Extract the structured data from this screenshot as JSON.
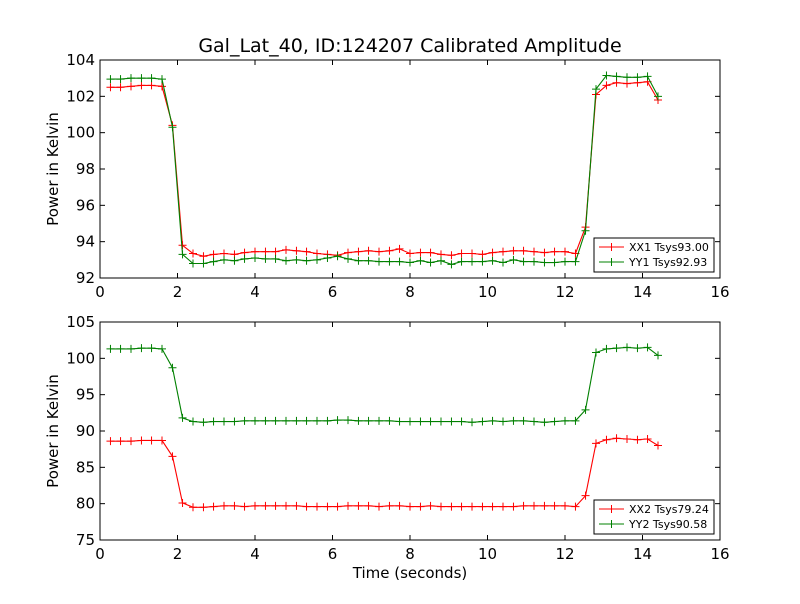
{
  "figure": {
    "title": "Gal_Lat_40, ID:124207 Calibrated Amplitude",
    "xlabel": "Time (seconds)"
  },
  "chart_data": [
    {
      "type": "line",
      "title": "Gal_Lat_40, ID:124207 Calibrated Amplitude",
      "xlabel": "",
      "ylabel": "Power in Kelvin",
      "xlim": [
        0,
        16
      ],
      "ylim": [
        92,
        104
      ],
      "xticks": [
        0,
        2,
        4,
        6,
        8,
        10,
        12,
        14,
        16
      ],
      "yticks": [
        92,
        94,
        96,
        98,
        100,
        102,
        104
      ],
      "legend_position": "lower-right",
      "x": [
        0.27,
        0.53,
        0.8,
        1.07,
        1.33,
        1.6,
        1.87,
        2.13,
        2.4,
        2.67,
        2.93,
        3.2,
        3.47,
        3.73,
        4.0,
        4.27,
        4.53,
        4.8,
        5.07,
        5.33,
        5.6,
        5.87,
        6.13,
        6.4,
        6.67,
        6.93,
        7.2,
        7.47,
        7.73,
        8.0,
        8.27,
        8.53,
        8.8,
        9.07,
        9.33,
        9.6,
        9.87,
        10.13,
        10.4,
        10.67,
        10.93,
        11.2,
        11.47,
        11.73,
        12.0,
        12.27,
        12.53,
        12.8,
        13.07,
        13.33,
        13.6,
        13.87,
        14.13,
        14.4
      ],
      "series": [
        {
          "name": "XX1 Tsys93.00",
          "color": "#ff0000",
          "values": [
            102.5,
            102.5,
            102.55,
            102.6,
            102.6,
            102.55,
            100.4,
            93.8,
            93.35,
            93.2,
            93.3,
            93.35,
            93.3,
            93.4,
            93.45,
            93.45,
            93.45,
            93.55,
            93.5,
            93.45,
            93.35,
            93.3,
            93.25,
            93.4,
            93.45,
            93.5,
            93.45,
            93.5,
            93.6,
            93.35,
            93.4,
            93.4,
            93.3,
            93.25,
            93.35,
            93.35,
            93.3,
            93.4,
            93.45,
            93.5,
            93.5,
            93.45,
            93.4,
            93.45,
            93.45,
            93.35,
            94.8,
            102.1,
            102.6,
            102.75,
            102.7,
            102.75,
            102.8,
            101.8
          ]
        },
        {
          "name": "YY1 Tsys92.93",
          "color": "#008000",
          "values": [
            102.95,
            102.95,
            103.0,
            103.0,
            103.0,
            102.95,
            100.3,
            93.3,
            92.8,
            92.8,
            92.9,
            93.0,
            92.95,
            93.05,
            93.1,
            93.05,
            93.05,
            92.95,
            93.0,
            92.95,
            93.0,
            93.1,
            93.2,
            93.05,
            92.95,
            92.95,
            92.9,
            92.9,
            92.9,
            92.85,
            92.95,
            92.85,
            92.95,
            92.75,
            92.9,
            92.9,
            92.9,
            92.95,
            92.85,
            93.0,
            92.9,
            92.9,
            92.85,
            92.85,
            92.9,
            92.9,
            94.6,
            102.4,
            103.15,
            103.1,
            103.05,
            103.05,
            103.1,
            102.0
          ]
        }
      ]
    },
    {
      "type": "line",
      "title": "",
      "xlabel": "Time (seconds)",
      "ylabel": "Power in Kelvin",
      "xlim": [
        0,
        16
      ],
      "ylim": [
        75,
        105
      ],
      "xticks": [
        0,
        2,
        4,
        6,
        8,
        10,
        12,
        14,
        16
      ],
      "yticks": [
        75,
        80,
        85,
        90,
        95,
        100,
        105
      ],
      "legend_position": "lower-right",
      "x": [
        0.27,
        0.53,
        0.8,
        1.07,
        1.33,
        1.6,
        1.87,
        2.13,
        2.4,
        2.67,
        2.93,
        3.2,
        3.47,
        3.73,
        4.0,
        4.27,
        4.53,
        4.8,
        5.07,
        5.33,
        5.6,
        5.87,
        6.13,
        6.4,
        6.67,
        6.93,
        7.2,
        7.47,
        7.73,
        8.0,
        8.27,
        8.53,
        8.8,
        9.07,
        9.33,
        9.6,
        9.87,
        10.13,
        10.4,
        10.67,
        10.93,
        11.2,
        11.47,
        11.73,
        12.0,
        12.27,
        12.53,
        12.8,
        13.07,
        13.33,
        13.6,
        13.87,
        14.13,
        14.4
      ],
      "series": [
        {
          "name": "XX2 Tsys79.24",
          "color": "#ff0000",
          "values": [
            88.6,
            88.6,
            88.6,
            88.7,
            88.7,
            88.7,
            86.5,
            80.1,
            79.5,
            79.5,
            79.6,
            79.7,
            79.7,
            79.6,
            79.7,
            79.7,
            79.7,
            79.7,
            79.7,
            79.6,
            79.6,
            79.6,
            79.6,
            79.7,
            79.7,
            79.7,
            79.6,
            79.7,
            79.7,
            79.6,
            79.6,
            79.7,
            79.6,
            79.6,
            79.6,
            79.6,
            79.6,
            79.6,
            79.6,
            79.6,
            79.7,
            79.7,
            79.7,
            79.7,
            79.7,
            79.6,
            81.1,
            88.3,
            88.8,
            89.0,
            88.9,
            88.8,
            88.9,
            88.0
          ]
        },
        {
          "name": "YY2 Tsys90.58",
          "color": "#008000",
          "values": [
            101.3,
            101.3,
            101.3,
            101.4,
            101.4,
            101.3,
            98.7,
            91.8,
            91.3,
            91.2,
            91.3,
            91.3,
            91.3,
            91.4,
            91.4,
            91.4,
            91.4,
            91.4,
            91.4,
            91.4,
            91.4,
            91.4,
            91.5,
            91.5,
            91.4,
            91.4,
            91.4,
            91.4,
            91.3,
            91.3,
            91.3,
            91.3,
            91.3,
            91.3,
            91.3,
            91.2,
            91.3,
            91.4,
            91.3,
            91.4,
            91.4,
            91.3,
            91.2,
            91.3,
            91.4,
            91.4,
            92.9,
            100.8,
            101.3,
            101.4,
            101.5,
            101.4,
            101.5,
            100.4
          ]
        }
      ]
    }
  ]
}
